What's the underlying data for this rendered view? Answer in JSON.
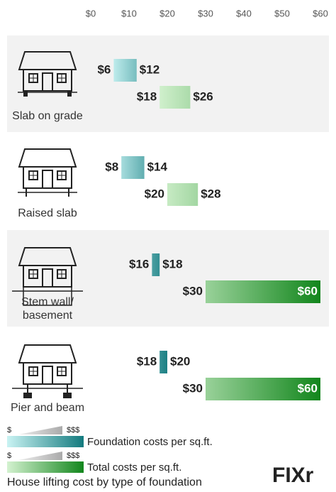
{
  "chart_data": {
    "type": "range-bar",
    "title": "House lifting cost by type of foundation",
    "categories": [
      "Slab on grade",
      "Raised slab",
      "Stem wall/ basement",
      "Pier and beam"
    ],
    "xlim": [
      0,
      60
    ],
    "xticks": [
      {
        "value": 0,
        "label": "$0"
      },
      {
        "value": 10,
        "label": "$10"
      },
      {
        "value": 20,
        "label": "$20"
      },
      {
        "value": 30,
        "label": "$30"
      },
      {
        "value": 40,
        "label": "$40"
      },
      {
        "value": 50,
        "label": "$50"
      },
      {
        "value": 60,
        "label": "$60"
      }
    ],
    "series": [
      {
        "name": "Foundation costs per sq.ft.",
        "color": [
          "#c9f3f3",
          "#137a7e"
        ],
        "values": [
          [
            6,
            12
          ],
          [
            8,
            14
          ],
          [
            16,
            18
          ],
          [
            18,
            20
          ]
        ],
        "value_labels": [
          [
            "$6",
            "$12"
          ],
          [
            "$8",
            "$14"
          ],
          [
            "$16",
            "$18"
          ],
          [
            "$18",
            "$20"
          ]
        ]
      },
      {
        "name": "Total costs per sq.ft.",
        "color": [
          "#d4f2d0",
          "#12861c"
        ],
        "values": [
          [
            18,
            26
          ],
          [
            20,
            28
          ],
          [
            30,
            60
          ],
          [
            30,
            60
          ]
        ],
        "value_labels": [
          [
            "$18",
            "$26"
          ],
          [
            "$20",
            "$28"
          ],
          [
            "$30",
            "$60"
          ],
          [
            "$30",
            "$60"
          ]
        ]
      }
    ],
    "legend": {
      "min_label": "$",
      "max_label": "$$$"
    },
    "logo": "FIXr"
  }
}
